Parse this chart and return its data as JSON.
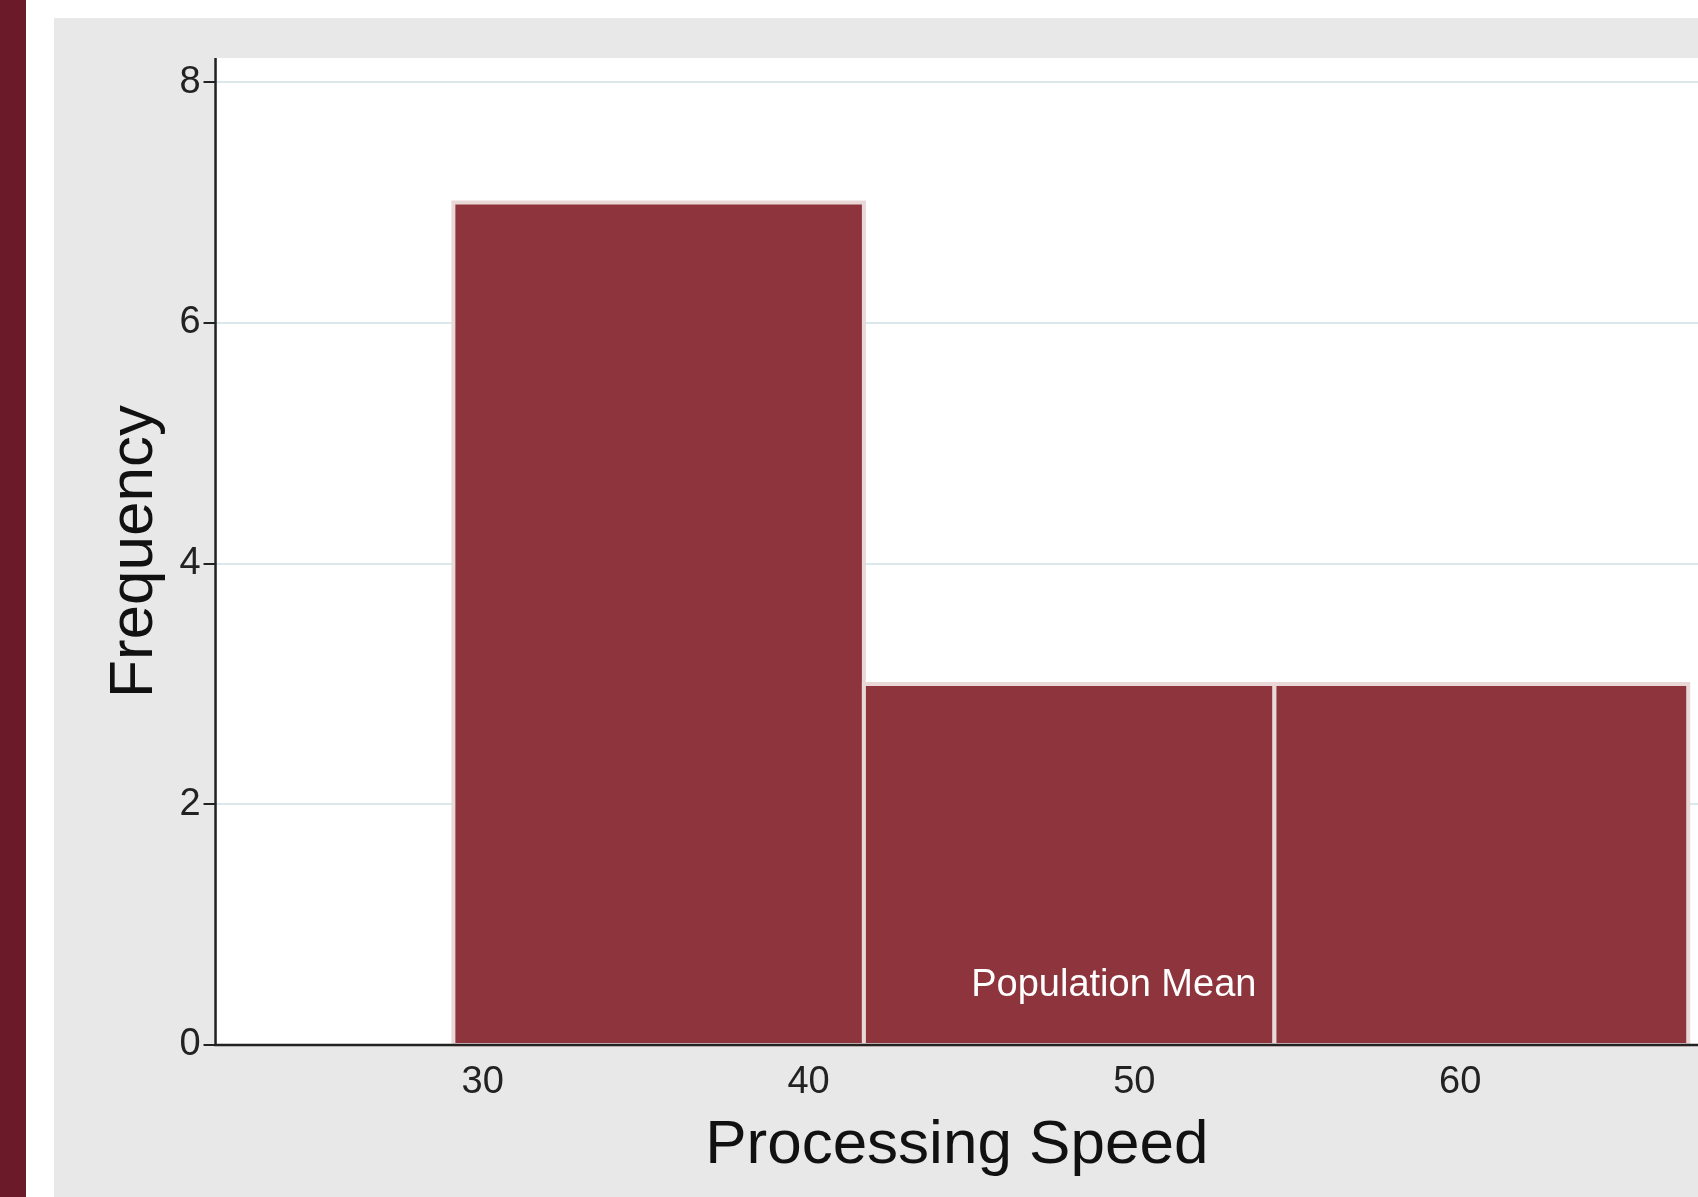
{
  "chart_data": {
    "type": "histogram",
    "xlabel": "Processing Speed",
    "ylabel": "Frequency",
    "bins": [
      29.1,
      41.7,
      54.3,
      67.0
    ],
    "values": [
      7,
      3,
      3
    ],
    "color": "#8e343c",
    "xlim": [
      21.8,
      67.3
    ],
    "ylim": [
      0,
      8.2
    ],
    "xticks": [
      30,
      40,
      50,
      60
    ],
    "yticks": [
      0,
      2,
      4,
      6,
      8
    ],
    "grid": "y",
    "legend": false,
    "annotations": [
      "Population Mean"
    ]
  }
}
